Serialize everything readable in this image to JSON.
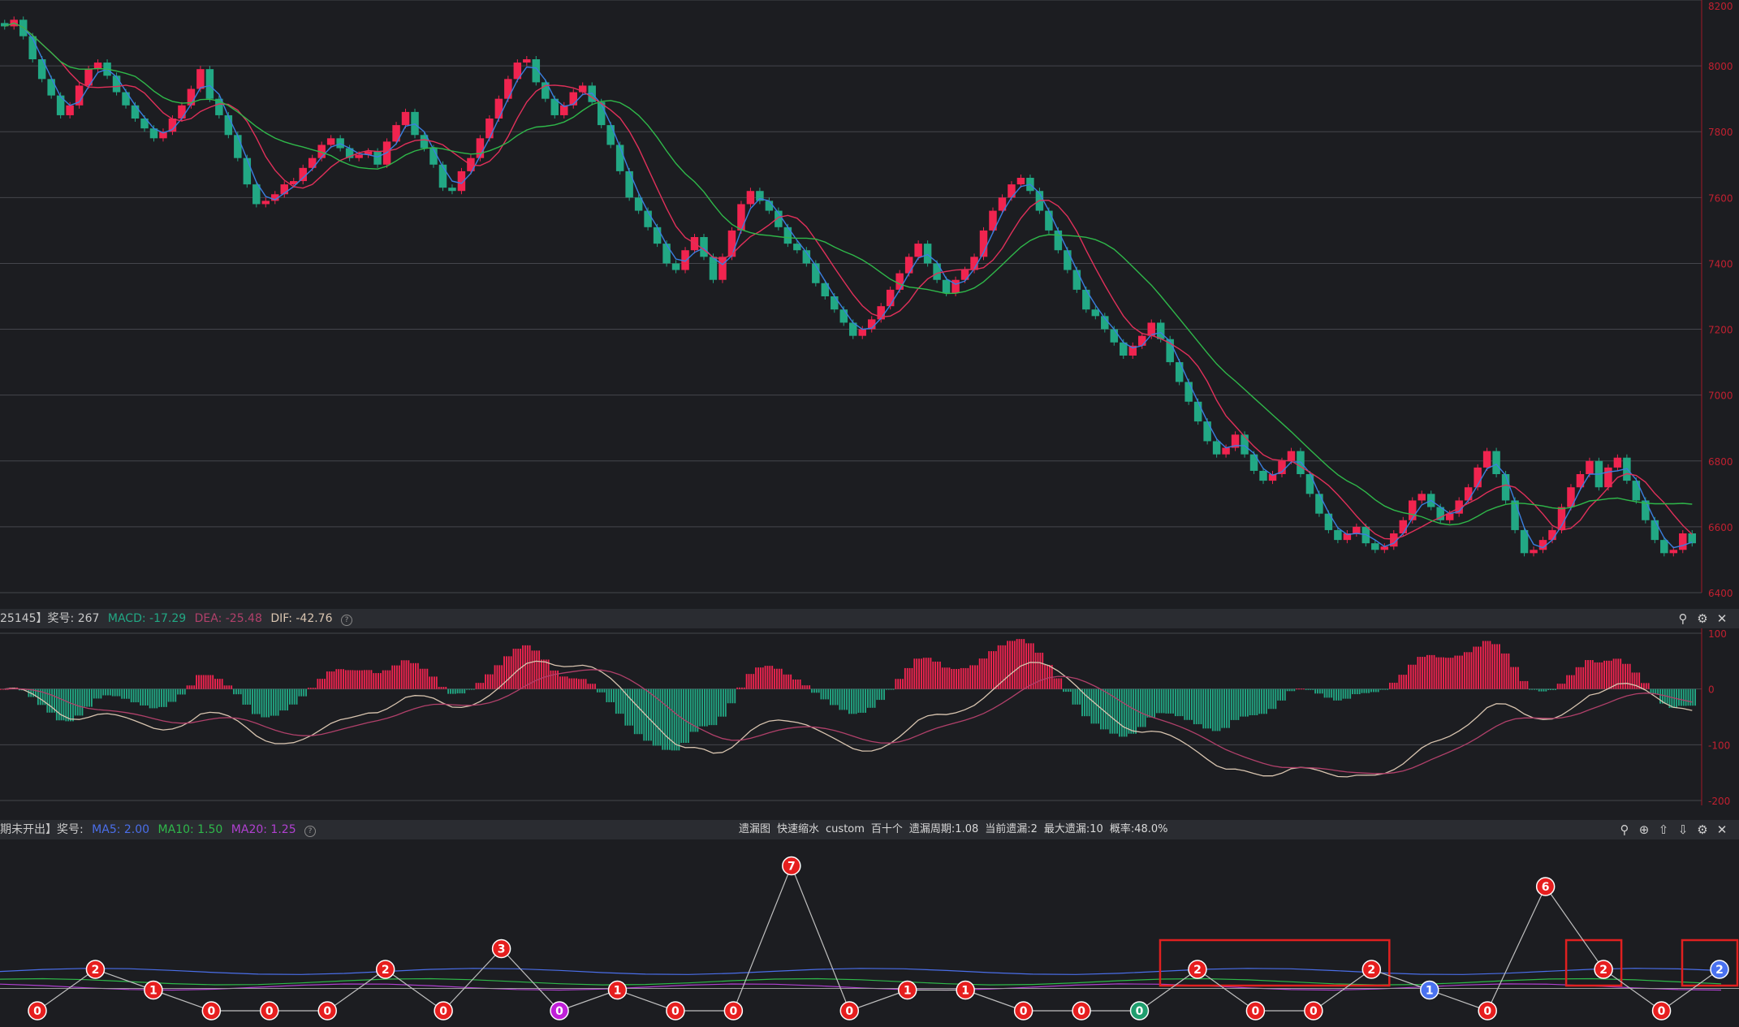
{
  "colors": {
    "up": "#f0244f",
    "down": "#22a884",
    "ma5": "#3a7fe0",
    "ma10": "#e0305a",
    "ma20": "#2fb84a",
    "dif": "#d9c5b0",
    "dea": "#b0406a",
    "grid": "#44464c",
    "axis": "#c02030"
  },
  "price_axis": {
    "labels": [
      "8200",
      "8000",
      "7800",
      "7600",
      "7400",
      "7200",
      "7000",
      "6800",
      "6600",
      "6400"
    ]
  },
  "macd_header": {
    "prefix": "25145】奖号: 267",
    "macd": "MACD: -17.29",
    "dea": "DEA: -25.48",
    "dif": "DIF: -42.76"
  },
  "macd_axis": {
    "labels": [
      "100",
      "0",
      "-100",
      "-200"
    ]
  },
  "omit_header": {
    "prefix": "期未开出】奖号:",
    "ma5": "MA5: 2.00",
    "ma10": "MA10: 1.50",
    "ma20": "MA20: 1.25"
  },
  "omit_center": {
    "items": [
      "遗漏图",
      "快速缩水",
      "custom",
      "百十个",
      "遗漏周期:1.08",
      "当前遗漏:2",
      "最大遗漏:10",
      "概率:48.0%"
    ]
  },
  "icons": {
    "pin": "pin-icon",
    "settings": "settings-icon",
    "close": "close-icon",
    "up": "move-up-icon",
    "down": "move-down-icon"
  },
  "chart_data": [
    {
      "type": "candlestick",
      "title": "",
      "ylim": [
        6400,
        8200
      ],
      "y_ticks": [
        8200,
        8000,
        7800,
        7600,
        7400,
        7200,
        7000,
        6800,
        6600,
        6400
      ],
      "series_close": [
        8120,
        8140,
        8090,
        8020,
        7960,
        7910,
        7850,
        7880,
        7940,
        7990,
        8010,
        7970,
        7920,
        7880,
        7840,
        7810,
        7780,
        7800,
        7840,
        7880,
        7930,
        7990,
        7900,
        7850,
        7790,
        7720,
        7640,
        7580,
        7590,
        7610,
        7640,
        7650,
        7690,
        7720,
        7760,
        7780,
        7750,
        7720,
        7730,
        7740,
        7700,
        7770,
        7820,
        7860,
        7790,
        7750,
        7700,
        7630,
        7620,
        7680,
        7720,
        7780,
        7840,
        7900,
        7960,
        8010,
        8020,
        7950,
        7900,
        7850,
        7880,
        7920,
        7940,
        7890,
        7820,
        7760,
        7680,
        7600,
        7560,
        7510,
        7460,
        7400,
        7380,
        7440,
        7480,
        7420,
        7350,
        7420,
        7500,
        7580,
        7620,
        7590,
        7560,
        7510,
        7460,
        7440,
        7400,
        7340,
        7300,
        7260,
        7220,
        7180,
        7200,
        7230,
        7270,
        7320,
        7370,
        7420,
        7460,
        7400,
        7350,
        7310,
        7350,
        7380,
        7420,
        7500,
        7560,
        7600,
        7640,
        7660,
        7620,
        7560,
        7500,
        7440,
        7380,
        7320,
        7260,
        7240,
        7200,
        7160,
        7120,
        7150,
        7180,
        7220,
        7170,
        7100,
        7040,
        6980,
        6920,
        6860,
        6820,
        6840,
        6880,
        6820,
        6770,
        6740,
        6760,
        6800,
        6830,
        6760,
        6700,
        6640,
        6590,
        6560,
        6580,
        6600,
        6550,
        6530,
        6540,
        6580,
        6620,
        6680,
        6700,
        6660,
        6620,
        6640,
        6680,
        6720,
        6780,
        6830,
        6760,
        6680,
        6590,
        6520,
        6530,
        6560,
        6590,
        6660,
        6720,
        6760,
        6800,
        6720,
        6780,
        6810,
        6740,
        6680,
        6620,
        6560,
        6520,
        6530,
        6580,
        6550
      ],
      "series": [
        {
          "name": "MA5",
          "color": "#3a7fe0"
        },
        {
          "name": "MA10",
          "color": "#e0305a"
        },
        {
          "name": "MA20",
          "color": "#2fb84a"
        }
      ]
    },
    {
      "type": "bar+line",
      "title": "MACD",
      "ylim": [
        -200,
        100
      ],
      "y_ticks": [
        100,
        0,
        -100,
        -200
      ],
      "series": [
        {
          "name": "MACD",
          "type": "histogram"
        },
        {
          "name": "DIF",
          "type": "line",
          "color": "#d9c5b0"
        },
        {
          "name": "DEA",
          "type": "line",
          "color": "#b0406a"
        }
      ]
    },
    {
      "type": "line",
      "title": "遗漏图",
      "nodes": [
        {
          "v": 0,
          "c": "red"
        },
        {
          "v": 2,
          "c": "red"
        },
        {
          "v": 1,
          "c": "red"
        },
        {
          "v": 0,
          "c": "red"
        },
        {
          "v": 0,
          "c": "red"
        },
        {
          "v": 0,
          "c": "red"
        },
        {
          "v": 2,
          "c": "red"
        },
        {
          "v": 0,
          "c": "red"
        },
        {
          "v": 3,
          "c": "red"
        },
        {
          "v": 0,
          "c": "purple"
        },
        {
          "v": 1,
          "c": "red"
        },
        {
          "v": 0,
          "c": "red"
        },
        {
          "v": 0,
          "c": "red"
        },
        {
          "v": 7,
          "c": "red"
        },
        {
          "v": 0,
          "c": "red"
        },
        {
          "v": 1,
          "c": "red"
        },
        {
          "v": 1,
          "c": "red"
        },
        {
          "v": 0,
          "c": "red"
        },
        {
          "v": 0,
          "c": "red"
        },
        {
          "v": 0,
          "c": "green"
        },
        {
          "v": 2,
          "c": "red"
        },
        {
          "v": 0,
          "c": "red"
        },
        {
          "v": 0,
          "c": "red"
        },
        {
          "v": 2,
          "c": "red"
        },
        {
          "v": 1,
          "c": "blue"
        },
        {
          "v": 0,
          "c": "red"
        },
        {
          "v": 6,
          "c": "red"
        },
        {
          "v": 2,
          "c": "red"
        },
        {
          "v": 0,
          "c": "red"
        },
        {
          "v": 2,
          "c": "blue"
        }
      ],
      "series": [
        {
          "name": "MA5",
          "value": 2.0,
          "color": "#4a6ee8"
        },
        {
          "name": "MA10",
          "value": 1.5,
          "color": "#2fb84a"
        },
        {
          "name": "MA20",
          "value": 1.25,
          "color": "#b040d0"
        }
      ]
    }
  ]
}
